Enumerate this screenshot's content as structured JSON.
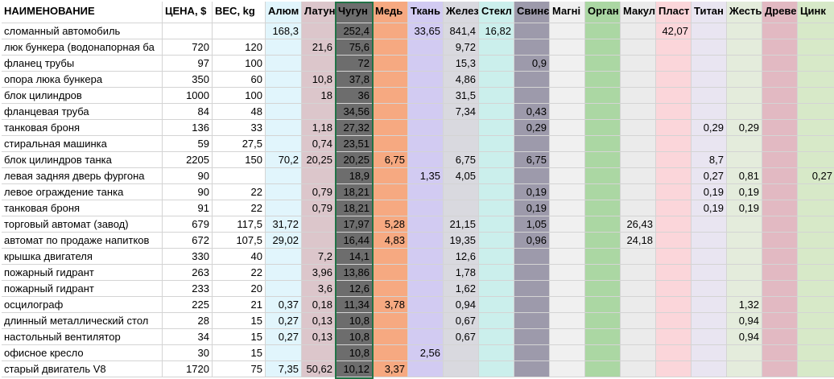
{
  "table": {
    "header": [
      "НАИМЕНОВАНИЕ",
      "ЦЕНА, $",
      "ВЕС, kg",
      "Алюм",
      "Латун",
      "Чугун",
      "Медь",
      "Ткань",
      "Желез",
      "Стекл",
      "Свинє",
      "Магні",
      "Орган",
      "Макул",
      "Пласт",
      "Титан",
      "Жесть",
      "Древе",
      "Цинк"
    ],
    "rows": [
      [
        "сломанный автомобиль",
        null,
        null,
        "168,3",
        null,
        "252,4",
        null,
        "33,65",
        "841,4",
        "16,82",
        null,
        null,
        null,
        null,
        "42,07",
        null,
        null,
        null,
        null
      ],
      [
        "люк бункера (водонапорная ба",
        "720",
        "120",
        null,
        "21,6",
        "75,6",
        null,
        null,
        "9,72",
        null,
        null,
        null,
        null,
        null,
        null,
        null,
        null,
        null,
        null
      ],
      [
        "фланец трубы",
        "97",
        "100",
        null,
        null,
        "72",
        null,
        null,
        "15,3",
        null,
        "0,9",
        null,
        null,
        null,
        null,
        null,
        null,
        null,
        null
      ],
      [
        "опора люка бункера",
        "350",
        "60",
        null,
        "10,8",
        "37,8",
        null,
        null,
        "4,86",
        null,
        null,
        null,
        null,
        null,
        null,
        null,
        null,
        null,
        null
      ],
      [
        "блок цилиндров",
        "1000",
        "100",
        null,
        "18",
        "36",
        null,
        null,
        "31,5",
        null,
        null,
        null,
        null,
        null,
        null,
        null,
        null,
        null,
        null
      ],
      [
        "фланцевая труба",
        "84",
        "48",
        null,
        null,
        "34,56",
        null,
        null,
        "7,34",
        null,
        "0,43",
        null,
        null,
        null,
        null,
        null,
        null,
        null,
        null
      ],
      [
        "танковая броня",
        "136",
        "33",
        null,
        "1,18",
        "27,32",
        null,
        null,
        null,
        null,
        "0,29",
        null,
        null,
        null,
        null,
        "0,29",
        "0,29",
        null,
        null
      ],
      [
        "стиральная машинка",
        "59",
        "27,5",
        null,
        "0,74",
        "23,51",
        null,
        null,
        null,
        null,
        null,
        null,
        null,
        null,
        null,
        null,
        null,
        null,
        null
      ],
      [
        "блок цилиндров танка",
        "2205",
        "150",
        "70,2",
        "20,25",
        "20,25",
        "6,75",
        null,
        "6,75",
        null,
        "6,75",
        null,
        null,
        null,
        null,
        "8,7",
        null,
        null,
        null
      ],
      [
        "левая задняя дверь фургона",
        "90",
        null,
        null,
        null,
        "18,9",
        null,
        "1,35",
        "4,05",
        null,
        null,
        null,
        null,
        null,
        null,
        "0,27",
        "0,81",
        null,
        "0,27"
      ],
      [
        "левое ограждение танка",
        "90",
        "22",
        null,
        "0,79",
        "18,21",
        null,
        null,
        null,
        null,
        "0,19",
        null,
        null,
        null,
        null,
        "0,19",
        "0,19",
        null,
        null
      ],
      [
        "танковая броня",
        "91",
        "22",
        null,
        "0,79",
        "18,21",
        null,
        null,
        null,
        null,
        "0,19",
        null,
        null,
        null,
        null,
        "0,19",
        "0,19",
        null,
        null
      ],
      [
        "торговый автомат (завод)",
        "679",
        "117,5",
        "31,72",
        null,
        "17,97",
        "5,28",
        null,
        "21,15",
        null,
        "1,05",
        null,
        null,
        "26,43",
        null,
        null,
        null,
        null,
        null
      ],
      [
        "автомат по продаже напитков",
        "672",
        "107,5",
        "29,02",
        null,
        "16,44",
        "4,83",
        null,
        "19,35",
        null,
        "0,96",
        null,
        null,
        "24,18",
        null,
        null,
        null,
        null,
        null
      ],
      [
        "крышка двигателя",
        "330",
        "40",
        null,
        "7,2",
        "14,1",
        null,
        null,
        "12,6",
        null,
        null,
        null,
        null,
        null,
        null,
        null,
        null,
        null,
        null
      ],
      [
        "пожарный гидрант",
        "263",
        "22",
        null,
        "3,96",
        "13,86",
        null,
        null,
        "1,78",
        null,
        null,
        null,
        null,
        null,
        null,
        null,
        null,
        null,
        null
      ],
      [
        "пожарный гидрант",
        "233",
        "20",
        null,
        "3,6",
        "12,6",
        null,
        null,
        "1,62",
        null,
        null,
        null,
        null,
        null,
        null,
        null,
        null,
        null,
        null
      ],
      [
        "осцилограф",
        "225",
        "21",
        "0,37",
        "0,18",
        "11,34",
        "3,78",
        null,
        "0,94",
        null,
        null,
        null,
        null,
        null,
        null,
        null,
        "1,32",
        null,
        null
      ],
      [
        "длинный металлический стол",
        "28",
        "15",
        "0,27",
        "0,13",
        "10,8",
        null,
        null,
        "0,67",
        null,
        null,
        null,
        null,
        null,
        null,
        null,
        "0,94",
        null,
        null
      ],
      [
        "настольный вентилятор",
        "34",
        "15",
        "0,27",
        "0,13",
        "10,8",
        null,
        null,
        "0,67",
        null,
        null,
        null,
        null,
        null,
        null,
        null,
        "0,94",
        null,
        null
      ],
      [
        "офисное кресло",
        "30",
        "15",
        null,
        null,
        "10,8",
        null,
        "2,56",
        null,
        null,
        null,
        null,
        null,
        null,
        null,
        null,
        null,
        null,
        null
      ],
      [
        "старый двигатель V8",
        "1720",
        "75",
        "7,35",
        "50,62",
        "10,12",
        "3,37",
        null,
        null,
        null,
        null,
        null,
        null,
        null,
        null,
        null,
        null,
        null,
        null
      ]
    ]
  }
}
